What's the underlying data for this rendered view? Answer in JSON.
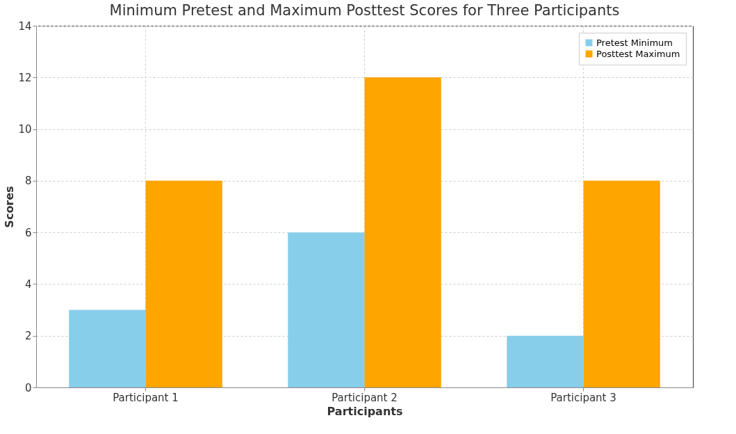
{
  "chart_data": {
    "type": "bar",
    "title": "Minimum Pretest and Maximum Posttest Scores for Three Participants",
    "xlabel": "Participants",
    "ylabel": "Scores",
    "categories": [
      "Participant 1",
      "Participant 2",
      "Participant 3"
    ],
    "series": [
      {
        "name": "Pretest Minimum",
        "color": "#87ceeb",
        "values": [
          3,
          6,
          2
        ]
      },
      {
        "name": "Posttest Maximum",
        "color": "#ffa500",
        "values": [
          8,
          12,
          8
        ]
      }
    ],
    "ylim": [
      0,
      14
    ],
    "yticks": [
      0,
      2,
      4,
      6,
      8,
      10,
      12,
      14
    ],
    "grid": true,
    "legend": "top right"
  }
}
